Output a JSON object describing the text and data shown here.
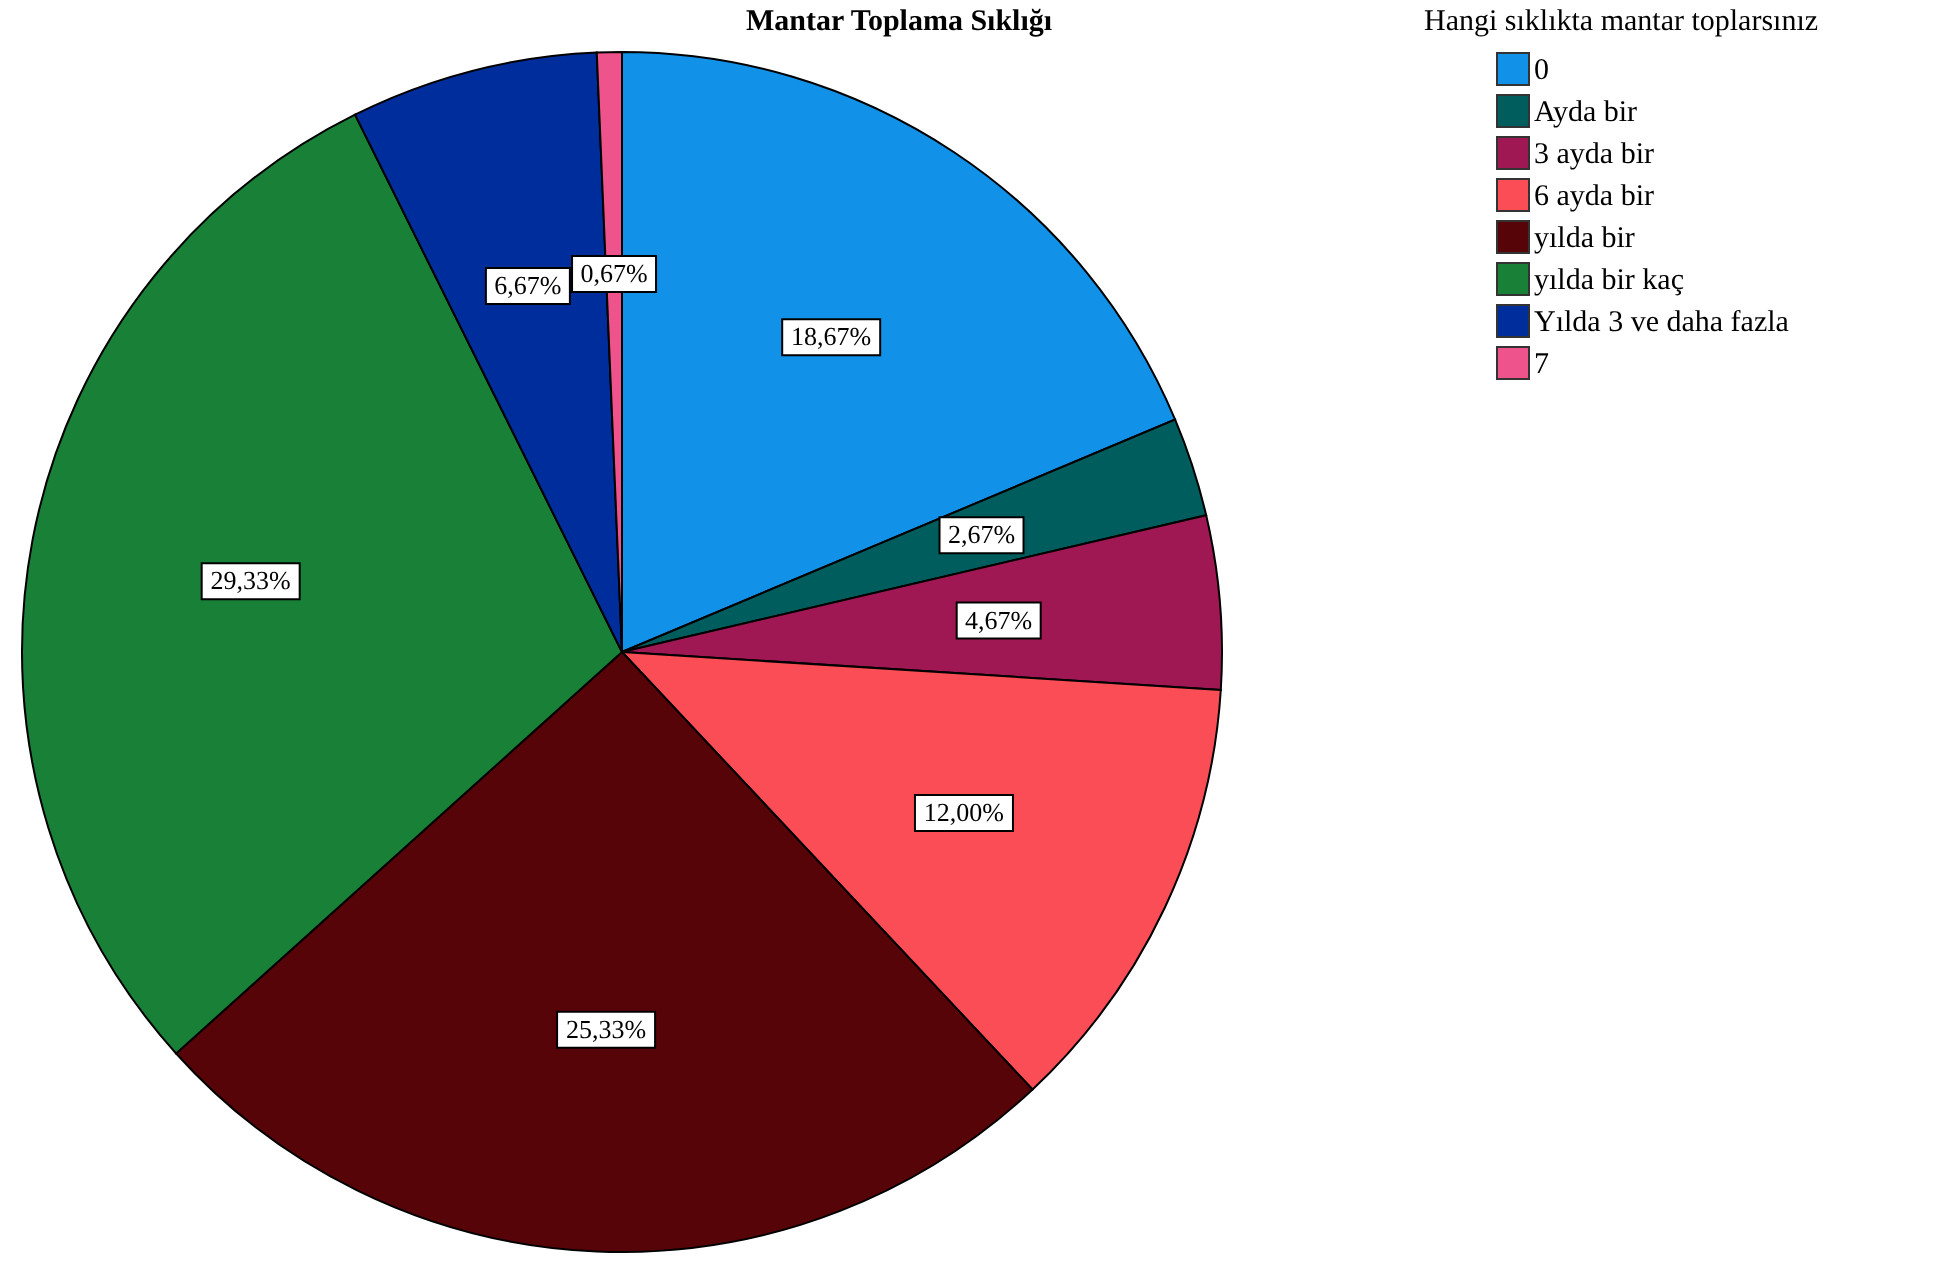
{
  "chart_data": {
    "type": "pie",
    "title": "Mantar Toplama Sıklığı",
    "legend_title": "Hangi sıklıkta mantar toplarsınız",
    "categories": [
      "0",
      "Ayda bir",
      "3 ayda bir",
      "6 ayda bir",
      "yılda bir",
      "yılda bir kaç",
      "Yılda 3 ve daha fazla",
      "7"
    ],
    "values": [
      18.67,
      2.67,
      4.67,
      12.0,
      25.33,
      29.33,
      6.67,
      0.67
    ],
    "colors": [
      "#1192e8",
      "#005d5d",
      "#9f1853",
      "#fa4d56",
      "#570408",
      "#198038",
      "#002d9c",
      "#ee538b"
    ],
    "value_labels": [
      "18,67%",
      "2,67%",
      "4,67%",
      "12,00%",
      "25,33%",
      "29,33%",
      "6,67%",
      "0,67%"
    ],
    "legend": "top right"
  }
}
